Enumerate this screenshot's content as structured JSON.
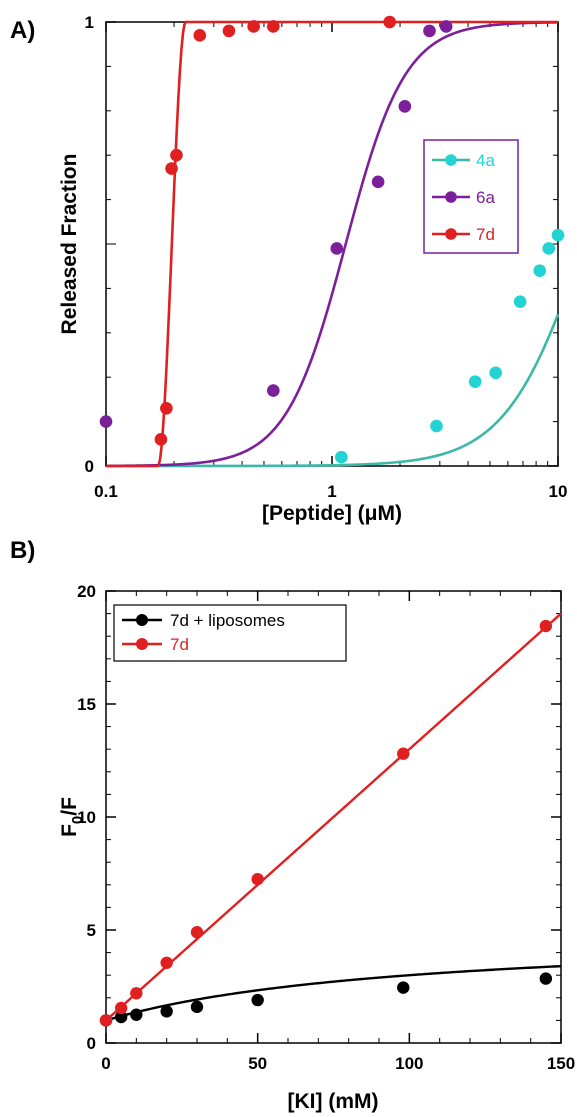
{
  "chart_data": [
    {
      "panel": "A)",
      "type": "scatter",
      "xlabel": "[Peptide] (μM)",
      "ylabel": "Released Fraction",
      "xscale": "log",
      "xlim": [
        0.1,
        10
      ],
      "ylim": [
        0,
        1
      ],
      "xticks": [
        {
          "v": 0.1,
          "label": "0.1"
        },
        {
          "v": 1,
          "label": "1"
        },
        {
          "v": 10,
          "label": "10"
        }
      ],
      "yticks": [
        {
          "v": 0,
          "label": "0"
        },
        {
          "v": 1,
          "label": "1"
        }
      ],
      "grid": false,
      "legend": "right",
      "series": [
        {
          "name": "4a",
          "color": "#22d3d3",
          "fitColor": "#3cb8a8",
          "points": [
            [
              1.1,
              0.02
            ],
            [
              2.9,
              0.09
            ],
            [
              4.3,
              0.19
            ],
            [
              5.3,
              0.21
            ],
            [
              6.8,
              0.37
            ],
            [
              8.3,
              0.44
            ],
            [
              9.1,
              0.49
            ],
            [
              10.0,
              0.52
            ]
          ],
          "fit": {
            "model": "hill",
            "ec50": 13,
            "n": 2.5
          }
        },
        {
          "name": "6a",
          "color": "#7b1f9a",
          "fitColor": "#7b1f9a",
          "points": [
            [
              0.1,
              0.1
            ],
            [
              0.55,
              0.17
            ],
            [
              1.05,
              0.49
            ],
            [
              1.6,
              0.64
            ],
            [
              2.1,
              0.81
            ],
            [
              2.7,
              0.98
            ],
            [
              3.2,
              0.99
            ]
          ],
          "fit": {
            "model": "hill",
            "ec50": 1.15,
            "n": 3.3
          }
        },
        {
          "name": "7d",
          "color": "#e02020",
          "fitColor": "#e02020",
          "points": [
            [
              0.175,
              0.06
            ],
            [
              0.185,
              0.13
            ],
            [
              0.195,
              0.67
            ],
            [
              0.205,
              0.7
            ],
            [
              0.26,
              0.97
            ],
            [
              0.35,
              0.98
            ],
            [
              0.45,
              0.99
            ],
            [
              0.55,
              0.99
            ],
            [
              1.8,
              1.0
            ]
          ],
          "fit": {
            "model": "step",
            "start": 0.17,
            "end": 0.225
          }
        }
      ]
    },
    {
      "panel": "B)",
      "type": "line",
      "xlabel": "[KI] (mM)",
      "ylabel": "F0/F",
      "ylabel_main": "F",
      "ylabel_sub": "0",
      "ylabel_tail": "/F",
      "xlim": [
        0,
        150
      ],
      "ylim": [
        0,
        20
      ],
      "xticks": [
        {
          "v": 0,
          "label": "0"
        },
        {
          "v": 50,
          "label": "50"
        },
        {
          "v": 100,
          "label": "100"
        },
        {
          "v": 150,
          "label": "150"
        }
      ],
      "yticks": [
        {
          "v": 0,
          "label": "0"
        },
        {
          "v": 5,
          "label": "5"
        },
        {
          "v": 10,
          "label": "10"
        },
        {
          "v": 15,
          "label": "15"
        },
        {
          "v": 20,
          "label": "20"
        }
      ],
      "grid": false,
      "legend": "top-left",
      "series": [
        {
          "name": "7d + liposomes",
          "color": "#000000",
          "points": [
            [
              0,
              1.0
            ],
            [
              5,
              1.15
            ],
            [
              10,
              1.25
            ],
            [
              20,
              1.4
            ],
            [
              30,
              1.6
            ],
            [
              50,
              1.9
            ],
            [
              98,
              2.45
            ],
            [
              145,
              2.85
            ]
          ],
          "fit": {
            "model": "sat",
            "a": 4.0,
            "b": 0.01
          }
        },
        {
          "name": "7d",
          "color": "#e02020",
          "points": [
            [
              0,
              1.0
            ],
            [
              5,
              1.55
            ],
            [
              10,
              2.2
            ],
            [
              20,
              3.55
            ],
            [
              30,
              4.9
            ],
            [
              50,
              7.25
            ],
            [
              98,
              12.8
            ],
            [
              145,
              18.45
            ]
          ],
          "fit": {
            "model": "linear",
            "intercept": 1.0,
            "slope": 0.12
          }
        }
      ]
    }
  ]
}
